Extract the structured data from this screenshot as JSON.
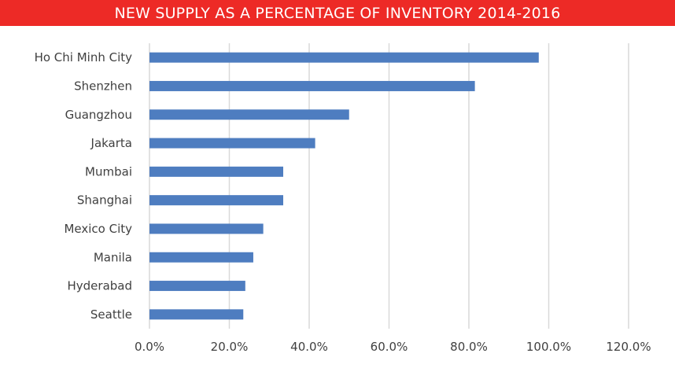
{
  "colors": {
    "title_bg": "#ED2A26",
    "bar": "#4E7DC0",
    "grid": "#D9D9D9"
  },
  "chart_data": {
    "type": "bar",
    "orientation": "horizontal",
    "title": "NEW SUPPLY AS A PERCENTAGE OF INVENTORY 2014-2016",
    "categories": [
      "Ho Chi Minh City",
      "Shenzhen",
      "Guangzhou",
      "Jakarta",
      "Mumbai",
      "Shanghai",
      "Mexico City",
      "Manila",
      "Hyderabad",
      "Seattle"
    ],
    "values": [
      97.5,
      81.5,
      50.0,
      41.5,
      33.5,
      33.5,
      28.5,
      26.0,
      24.0,
      23.5
    ],
    "xlim": [
      0,
      120
    ],
    "xticks": [
      "0.0%",
      "20.0%",
      "40.0%",
      "60.0%",
      "80.0%",
      "100.0%",
      "120.0%"
    ],
    "grid": true,
    "legend": "none"
  }
}
